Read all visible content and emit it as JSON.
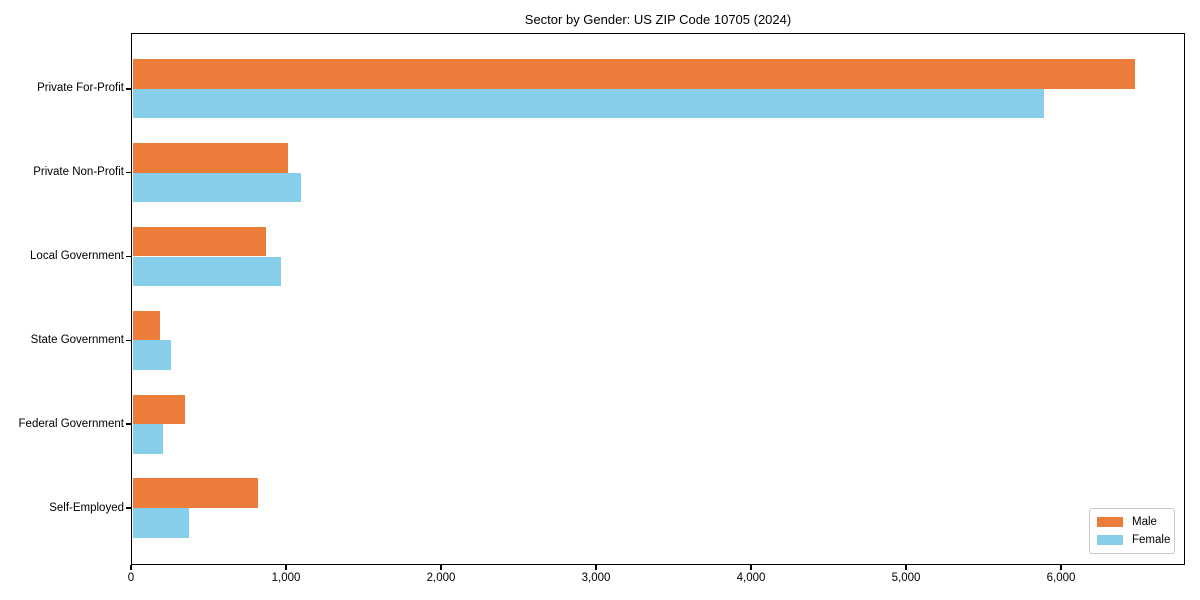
{
  "chart_data": {
    "type": "bar",
    "orientation": "horizontal",
    "title": "Sector by Gender: US ZIP Code 10705 (2024)",
    "xlabel": "",
    "ylabel": "",
    "categories": [
      "Private For-Profit",
      "Private Non-Profit",
      "Local Government",
      "State Government",
      "Federal Government",
      "Self-Employed"
    ],
    "series": [
      {
        "name": "Male",
        "color": "#EC7C3A",
        "values": [
          6475,
          1015,
          870,
          190,
          350,
          820
        ]
      },
      {
        "name": "Female",
        "color": "#87CEEB",
        "values": [
          5890,
          1095,
          970,
          255,
          205,
          375
        ]
      }
    ],
    "xlim": [
      0,
      6800
    ],
    "xticks": [
      0,
      1000,
      2000,
      3000,
      4000,
      5000,
      6000
    ],
    "xtick_labels": [
      "0",
      "1,000",
      "2,000",
      "3,000",
      "4,000",
      "5,000",
      "6,000"
    ],
    "grid": false,
    "legend": {
      "position": "lower right",
      "entries": [
        "Male",
        "Female"
      ]
    }
  }
}
